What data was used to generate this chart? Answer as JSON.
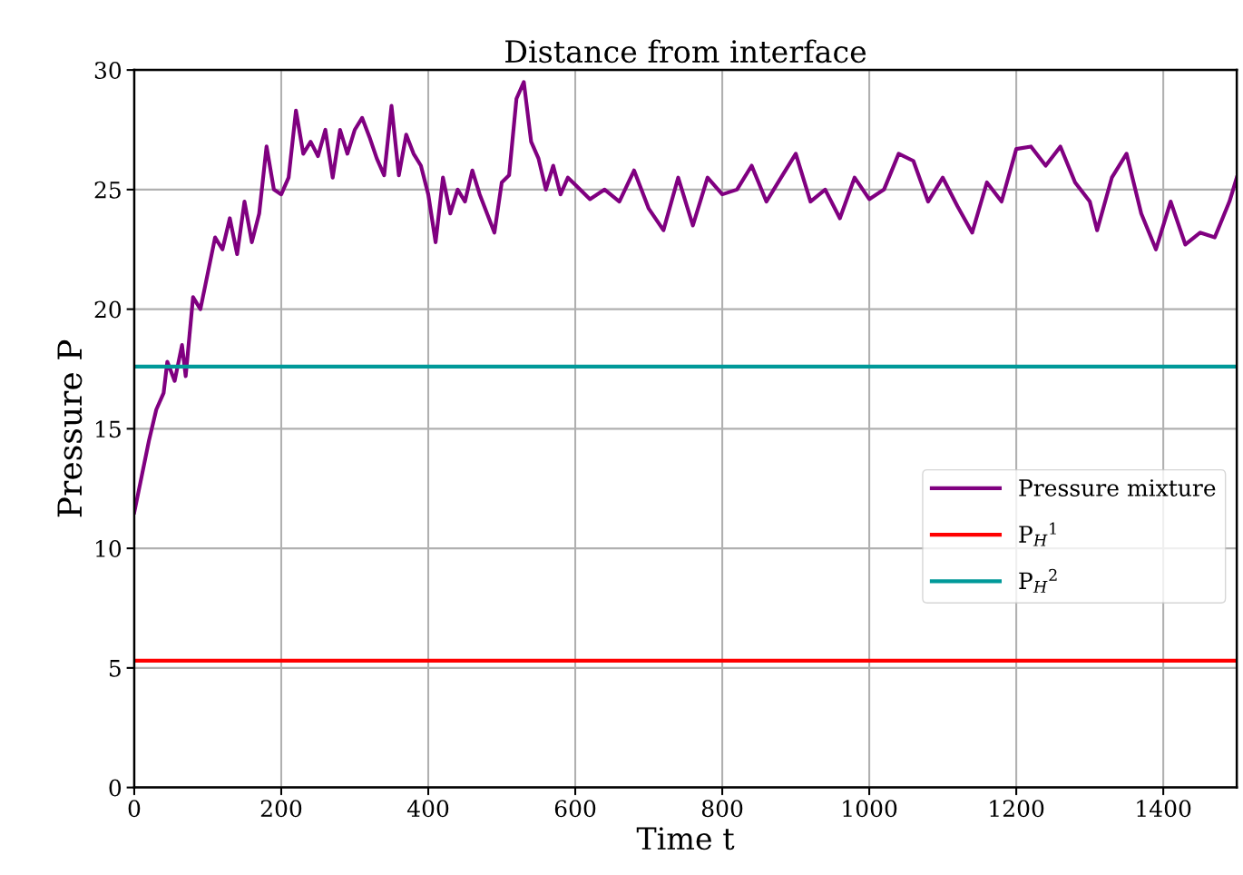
{
  "chart_data": {
    "type": "line",
    "title": "Distance from interface",
    "xlabel": "Time t",
    "ylabel": "Pressure P",
    "xlim": [
      0,
      1500
    ],
    "ylim": [
      0,
      30
    ],
    "xticks": [
      0,
      200,
      400,
      600,
      800,
      1000,
      1200,
      1400
    ],
    "yticks": [
      0,
      5,
      10,
      15,
      20,
      25,
      30
    ],
    "grid": true,
    "legend": "right",
    "line_style": "solid",
    "marker": "none",
    "series": [
      {
        "name": "Pressure mixture",
        "color": "#800080",
        "x": [
          0,
          10,
          20,
          30,
          40,
          45,
          55,
          65,
          70,
          80,
          90,
          100,
          110,
          120,
          130,
          140,
          150,
          160,
          170,
          180,
          190,
          200,
          210,
          220,
          230,
          240,
          250,
          260,
          270,
          280,
          290,
          300,
          310,
          320,
          330,
          340,
          350,
          360,
          370,
          380,
          390,
          400,
          410,
          420,
          430,
          440,
          450,
          460,
          470,
          480,
          490,
          500,
          510,
          520,
          530,
          540,
          550,
          560,
          570,
          580,
          590,
          600,
          620,
          640,
          660,
          680,
          700,
          720,
          740,
          760,
          780,
          800,
          820,
          840,
          860,
          880,
          900,
          920,
          940,
          960,
          980,
          1000,
          1020,
          1040,
          1060,
          1080,
          1100,
          1120,
          1140,
          1160,
          1180,
          1200,
          1220,
          1240,
          1260,
          1280,
          1300,
          1310,
          1330,
          1350,
          1370,
          1390,
          1410,
          1430,
          1450,
          1470,
          1490,
          1500
        ],
        "values": [
          11.5,
          13,
          14.5,
          15.8,
          16.5,
          17.8,
          17.0,
          18.5,
          17.2,
          20.5,
          20.0,
          21.5,
          23.0,
          22.5,
          23.8,
          22.3,
          24.5,
          22.8,
          24.0,
          26.8,
          25.0,
          24.8,
          25.5,
          28.3,
          26.5,
          27.0,
          26.4,
          27.5,
          25.5,
          27.5,
          26.5,
          27.5,
          28.0,
          27.2,
          26.3,
          25.6,
          28.5,
          25.6,
          27.3,
          26.5,
          26.0,
          24.8,
          22.8,
          25.5,
          24.0,
          25.0,
          24.5,
          25.8,
          24.8,
          24.0,
          23.2,
          25.3,
          25.6,
          28.8,
          29.5,
          27.0,
          26.3,
          25.0,
          26.0,
          24.8,
          25.5,
          25.2,
          24.6,
          25.0,
          24.5,
          25.8,
          24.2,
          23.3,
          25.5,
          23.5,
          25.5,
          24.8,
          25.0,
          26.0,
          24.5,
          25.5,
          26.5,
          24.5,
          25.0,
          23.8,
          25.5,
          24.6,
          25.0,
          26.5,
          26.2,
          24.5,
          25.5,
          24.3,
          23.2,
          25.3,
          24.5,
          26.7,
          26.8,
          26.0,
          26.8,
          25.3,
          24.5,
          23.3,
          25.5,
          26.5,
          24.0,
          22.5,
          24.5,
          22.7,
          23.2,
          23.0,
          24.5,
          25.5
        ]
      },
      {
        "name": "P$_{H}$$^{1}$",
        "color": "#ff0000",
        "x": [
          0,
          1500
        ],
        "values": [
          5.3,
          5.3
        ]
      },
      {
        "name": "P$_{H}$$^{2}$",
        "color": "#009999",
        "x": [
          0,
          1500
        ],
        "values": [
          17.6,
          17.6
        ]
      }
    ]
  }
}
